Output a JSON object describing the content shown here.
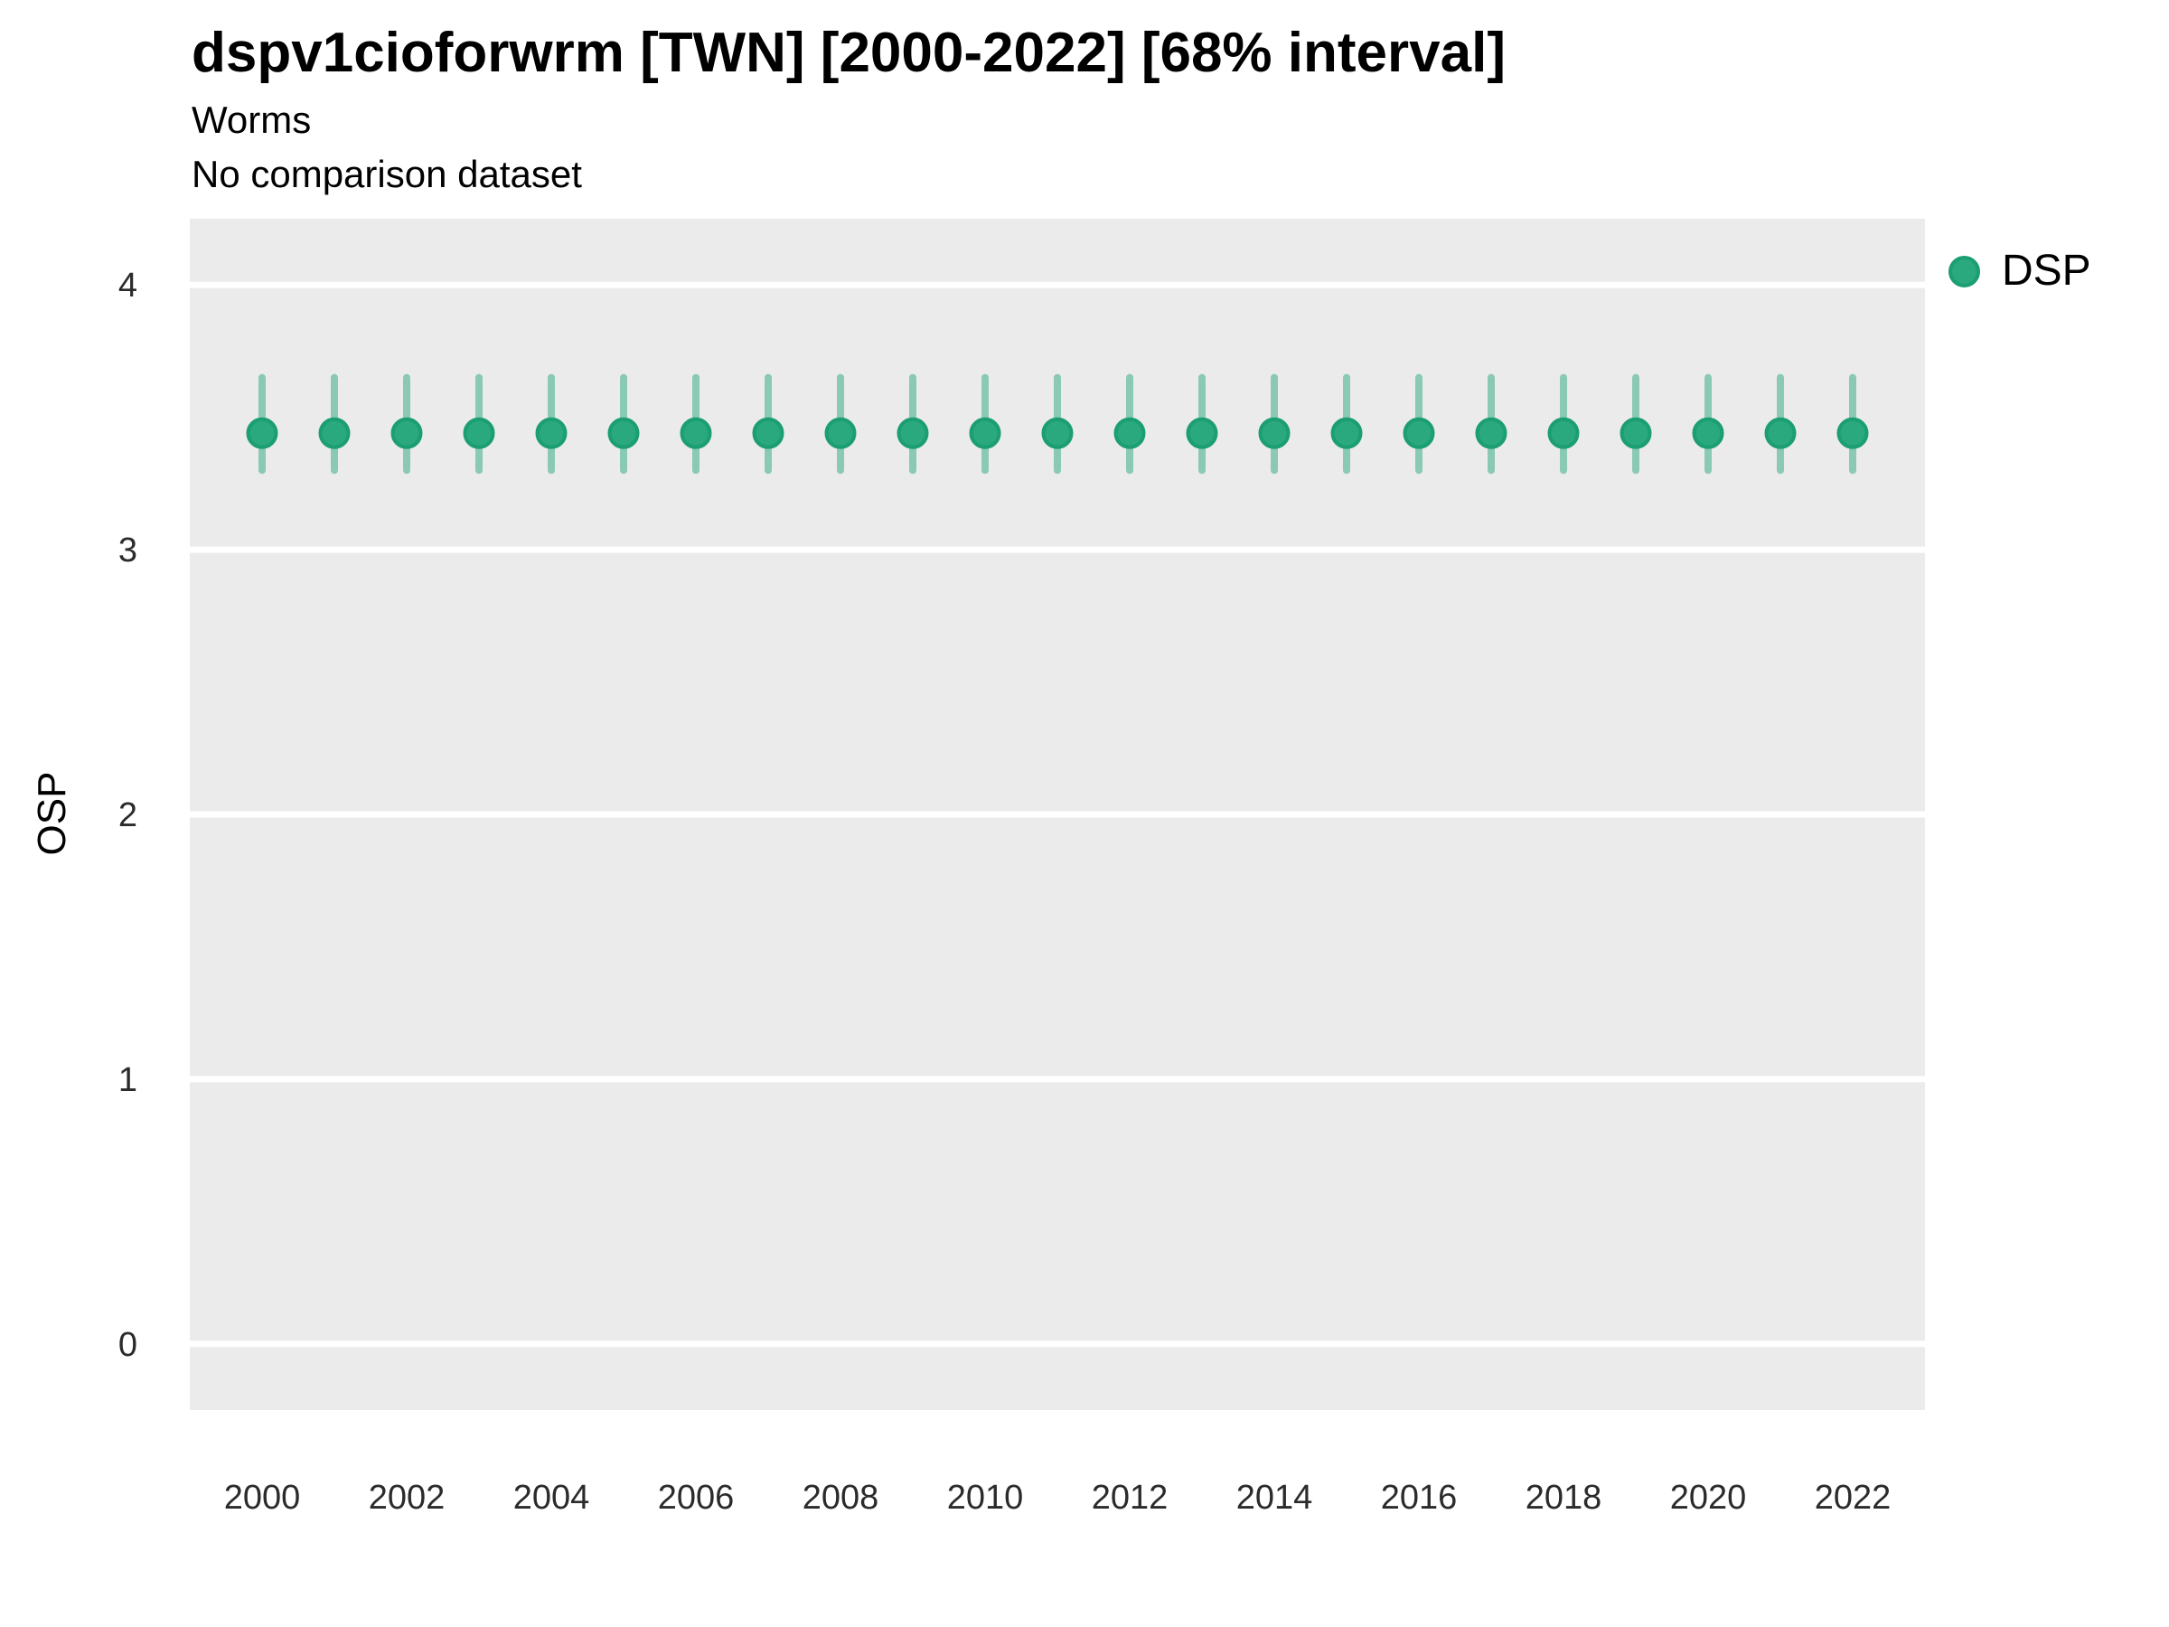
{
  "header": {
    "title": "dspv1cioforwrm [TWN] [2000-2022] [68% interval]",
    "subtitle1": "Worms",
    "subtitle2": "No comparison dataset"
  },
  "axes": {
    "y_title": "OSP"
  },
  "legend": {
    "items": [
      {
        "label": "DSP",
        "color": "#2AA87E"
      }
    ],
    "position": "right"
  },
  "chart_data": {
    "type": "scatter",
    "title": "dspv1cioforwrm [TWN] [2000-2022] [68% interval]",
    "subtitle": "Worms",
    "note": "No comparison dataset",
    "interval_label": "68% interval",
    "xlabel": "",
    "ylabel": "OSP",
    "xlim": [
      1999,
      2023
    ],
    "ylim": [
      -0.25,
      4.25
    ],
    "xticks": [
      2000,
      2002,
      2004,
      2006,
      2008,
      2010,
      2012,
      2014,
      2016,
      2018,
      2020,
      2022
    ],
    "yticks": [
      0,
      1,
      2,
      3,
      4
    ],
    "grid": "horizontal-major",
    "legend_position": "right",
    "series": [
      {
        "name": "DSP",
        "x": [
          2000,
          2001,
          2002,
          2003,
          2004,
          2005,
          2006,
          2007,
          2008,
          2009,
          2010,
          2011,
          2012,
          2013,
          2014,
          2015,
          2016,
          2017,
          2018,
          2019,
          2020,
          2021,
          2022
        ],
        "y": [
          3.44,
          3.44,
          3.44,
          3.44,
          3.44,
          3.44,
          3.44,
          3.44,
          3.44,
          3.44,
          3.44,
          3.44,
          3.44,
          3.44,
          3.44,
          3.44,
          3.44,
          3.44,
          3.44,
          3.44,
          3.44,
          3.44,
          3.44
        ],
        "y_low": [
          3.3,
          3.3,
          3.3,
          3.3,
          3.3,
          3.3,
          3.3,
          3.3,
          3.3,
          3.3,
          3.3,
          3.3,
          3.3,
          3.3,
          3.3,
          3.3,
          3.3,
          3.3,
          3.3,
          3.3,
          3.3,
          3.3,
          3.3
        ],
        "y_high": [
          3.65,
          3.65,
          3.65,
          3.65,
          3.65,
          3.65,
          3.65,
          3.65,
          3.65,
          3.65,
          3.65,
          3.65,
          3.65,
          3.65,
          3.65,
          3.65,
          3.65,
          3.65,
          3.65,
          3.65,
          3.65,
          3.65,
          3.65
        ]
      }
    ],
    "style": {
      "panel_bg": "#EBEBEB",
      "grid_color": "#FFFFFF",
      "point_fill": "#2AA87E",
      "point_stroke": "#1B9E71",
      "interval_color": "rgba(42,168,126,0.5)",
      "tick_text_color": "#2b2b2b"
    }
  }
}
